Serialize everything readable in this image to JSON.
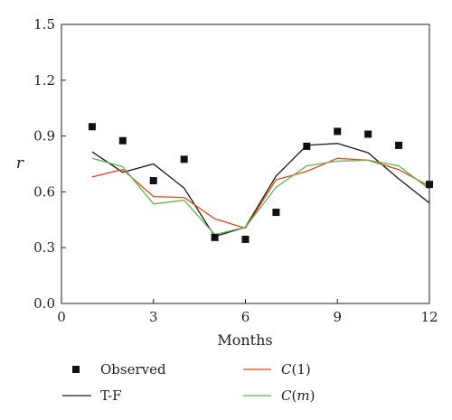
{
  "chart_data": {
    "type": "line",
    "xlabel": "Months",
    "ylabel": "r",
    "xlim": [
      0,
      12
    ],
    "ylim": [
      0,
      1.5
    ],
    "xticks": [
      0,
      3,
      6,
      9,
      12
    ],
    "yticks": [
      0.0,
      0.3,
      0.6,
      0.9,
      1.2,
      1.5
    ],
    "xtick_labels": [
      "0",
      "3",
      "6",
      "9",
      "12"
    ],
    "ytick_labels": [
      "0.0",
      "0.3",
      "0.6",
      "0.9",
      "1.2",
      "1.5"
    ],
    "grid": false,
    "legend_position": "bottom",
    "series": [
      {
        "name": "Observed",
        "style": "square-marker",
        "color": "#111111",
        "x": [
          1,
          2,
          3,
          4,
          5,
          6,
          7,
          8,
          9,
          10,
          11,
          12
        ],
        "y": [
          0.95,
          0.875,
          0.66,
          0.775,
          0.355,
          0.345,
          0.49,
          0.845,
          0.925,
          0.91,
          0.85,
          0.64
        ]
      },
      {
        "name": "T-F",
        "style": "line",
        "color": "#1a1a1a",
        "x": [
          1,
          2,
          3,
          4,
          5,
          6,
          7,
          8,
          9,
          10,
          11,
          12
        ],
        "y": [
          0.815,
          0.705,
          0.75,
          0.62,
          0.36,
          0.41,
          0.685,
          0.85,
          0.86,
          0.81,
          0.67,
          0.54
        ]
      },
      {
        "name": "C(1)",
        "name_plain": "C",
        "name_paren": "(1)",
        "style": "line",
        "color": "#e2441c",
        "x": [
          1,
          2,
          3,
          4,
          5,
          6,
          7,
          8,
          9,
          10,
          11,
          12
        ],
        "y": [
          0.68,
          0.72,
          0.575,
          0.57,
          0.455,
          0.405,
          0.665,
          0.71,
          0.78,
          0.77,
          0.72,
          0.63
        ]
      },
      {
        "name": "C(m)",
        "name_plain": "C",
        "name_paren_open": "(",
        "name_paren_var": "m",
        "name_paren_close": ")",
        "style": "line",
        "color": "#5cb84a",
        "x": [
          1,
          2,
          3,
          4,
          5,
          6,
          7,
          8,
          9,
          10,
          11,
          12
        ],
        "y": [
          0.78,
          0.735,
          0.535,
          0.555,
          0.37,
          0.41,
          0.625,
          0.74,
          0.765,
          0.77,
          0.74,
          0.615
        ]
      }
    ]
  }
}
